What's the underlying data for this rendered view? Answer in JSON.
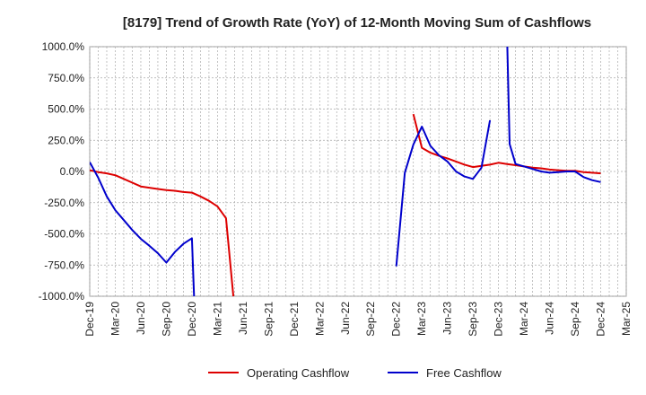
{
  "chart_data": {
    "type": "line",
    "title": "[8179]  Trend of Growth Rate (YoY) of 12-Month Moving Sum of Cashflows",
    "xlabel": "",
    "ylabel": "",
    "ylim": [
      -1000,
      1000
    ],
    "y_ticks": [
      "1000.0%",
      "750.0%",
      "500.0%",
      "250.0%",
      "0.0%",
      "-250.0%",
      "-500.0%",
      "-750.0%",
      "-1000.0%"
    ],
    "y_tick_values": [
      1000,
      750,
      500,
      250,
      0,
      -250,
      -500,
      -750,
      -1000
    ],
    "x_ticks": [
      "Dec-19",
      "Mar-20",
      "Jun-20",
      "Sep-20",
      "Dec-20",
      "Mar-21",
      "Jun-21",
      "Sep-21",
      "Dec-21",
      "Mar-22",
      "Jun-22",
      "Sep-22",
      "Dec-22",
      "Mar-23",
      "Jun-23",
      "Sep-23",
      "Dec-23",
      "Mar-24",
      "Jun-24",
      "Sep-24",
      "Dec-24",
      "Mar-25"
    ],
    "x_range": [
      "2019-12",
      "2025-03"
    ],
    "grid": true,
    "legend": "bottom",
    "series": [
      {
        "name": "Operating Cashflow",
        "color": "#dd0000",
        "points": [
          [
            "2019-12",
            10
          ],
          [
            "2020-01",
            -5
          ],
          [
            "2020-02",
            -15
          ],
          [
            "2020-03",
            -30
          ],
          [
            "2020-04",
            -60
          ],
          [
            "2020-05",
            -90
          ],
          [
            "2020-06",
            -120
          ],
          [
            "2020-07",
            -130
          ],
          [
            "2020-08",
            -140
          ],
          [
            "2020-09",
            -150
          ],
          [
            "2020-10",
            -155
          ],
          [
            "2020-11",
            -165
          ],
          [
            "2020-12",
            -170
          ],
          [
            "2021-01",
            -200
          ],
          [
            "2021-02",
            -235
          ],
          [
            "2021-03",
            -280
          ],
          [
            "2021-04",
            -375
          ],
          [
            "2021-05",
            -1100
          ]
        ],
        "points_2": [
          [
            "2023-02",
            460
          ],
          [
            "2023-03",
            190
          ],
          [
            "2023-04",
            150
          ],
          [
            "2023-05",
            125
          ],
          [
            "2023-06",
            105
          ],
          [
            "2023-07",
            80
          ],
          [
            "2023-08",
            55
          ],
          [
            "2023-09",
            35
          ],
          [
            "2023-10",
            45
          ],
          [
            "2023-11",
            55
          ],
          [
            "2023-12",
            70
          ],
          [
            "2024-01",
            60
          ],
          [
            "2024-02",
            50
          ],
          [
            "2024-03",
            40
          ],
          [
            "2024-04",
            30
          ],
          [
            "2024-05",
            25
          ],
          [
            "2024-06",
            15
          ],
          [
            "2024-07",
            10
          ],
          [
            "2024-08",
            5
          ],
          [
            "2024-09",
            5
          ],
          [
            "2024-10",
            -5
          ],
          [
            "2024-11",
            -10
          ],
          [
            "2024-12",
            -15
          ]
        ]
      },
      {
        "name": "Free Cashflow",
        "color": "#0000cc",
        "points": [
          [
            "2019-12",
            75
          ],
          [
            "2020-01",
            -50
          ],
          [
            "2020-02",
            -200
          ],
          [
            "2020-03",
            -310
          ],
          [
            "2020-04",
            -390
          ],
          [
            "2020-05",
            -470
          ],
          [
            "2020-06",
            -540
          ],
          [
            "2020-07",
            -595
          ],
          [
            "2020-08",
            -655
          ],
          [
            "2020-09",
            -730
          ],
          [
            "2020-10",
            -645
          ],
          [
            "2020-11",
            -580
          ],
          [
            "2020-12",
            -535
          ],
          [
            "2020-12.3",
            -1100
          ]
        ],
        "points_2": [
          [
            "2022-12",
            -760
          ],
          [
            "2023-01",
            -10
          ],
          [
            "2023-02",
            215
          ],
          [
            "2023-03",
            360
          ],
          [
            "2023-04",
            205
          ],
          [
            "2023-05",
            130
          ],
          [
            "2023-06",
            80
          ],
          [
            "2023-07",
            0
          ],
          [
            "2023-08",
            -40
          ],
          [
            "2023-09",
            -60
          ],
          [
            "2023-10",
            30
          ],
          [
            "2023-11",
            410
          ]
        ],
        "points_3": [
          [
            "2024-01",
            1100
          ],
          [
            "2024-01.3",
            220
          ],
          [
            "2024-02",
            60
          ],
          [
            "2024-03",
            40
          ],
          [
            "2024-04",
            20
          ],
          [
            "2024-05",
            0
          ],
          [
            "2024-06",
            -10
          ],
          [
            "2024-07",
            -5
          ],
          [
            "2024-08",
            0
          ],
          [
            "2024-09",
            0
          ],
          [
            "2024-10",
            -45
          ],
          [
            "2024-11",
            -70
          ],
          [
            "2024-12",
            -85
          ]
        ]
      }
    ]
  }
}
